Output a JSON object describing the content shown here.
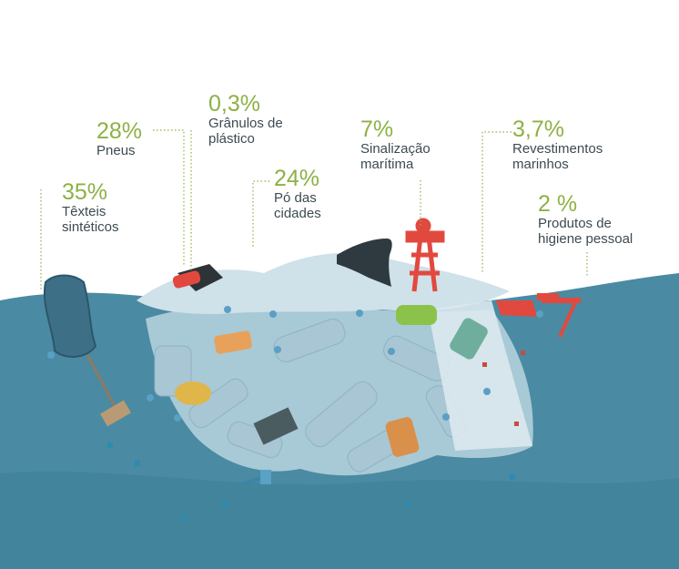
{
  "colors": {
    "accent": "#8db145",
    "text": "#3d4a52",
    "sea": "#4a8aa3",
    "sea_deep": "#3e7f99",
    "plastic": "#b9d3df"
  },
  "sources": [
    {
      "percent": "35%",
      "line1": "Têxteis",
      "line2": "sintéticos",
      "icon": "mannequin-icon"
    },
    {
      "percent": "28%",
      "line1": "Pneus",
      "line2": "",
      "icon": "tyre-icon"
    },
    {
      "percent": "0,3%",
      "line1": "Grânulos de",
      "line2": "plástico",
      "icon": "pellets-icon"
    },
    {
      "percent": "24%",
      "line1": "Pó das",
      "line2": "cidades",
      "icon": "city-dust-icon"
    },
    {
      "percent": "7%",
      "line1": "Sinalização",
      "line2": "marítima",
      "icon": "buoy-icon"
    },
    {
      "percent": "3,7%",
      "line1": "Revestimentos",
      "line2": "marinhos",
      "icon": "boat-icon"
    },
    {
      "percent": "2 %",
      "line1": "Produtos de",
      "line2": "higiene pessoal",
      "icon": "toothbrush-icon"
    }
  ]
}
